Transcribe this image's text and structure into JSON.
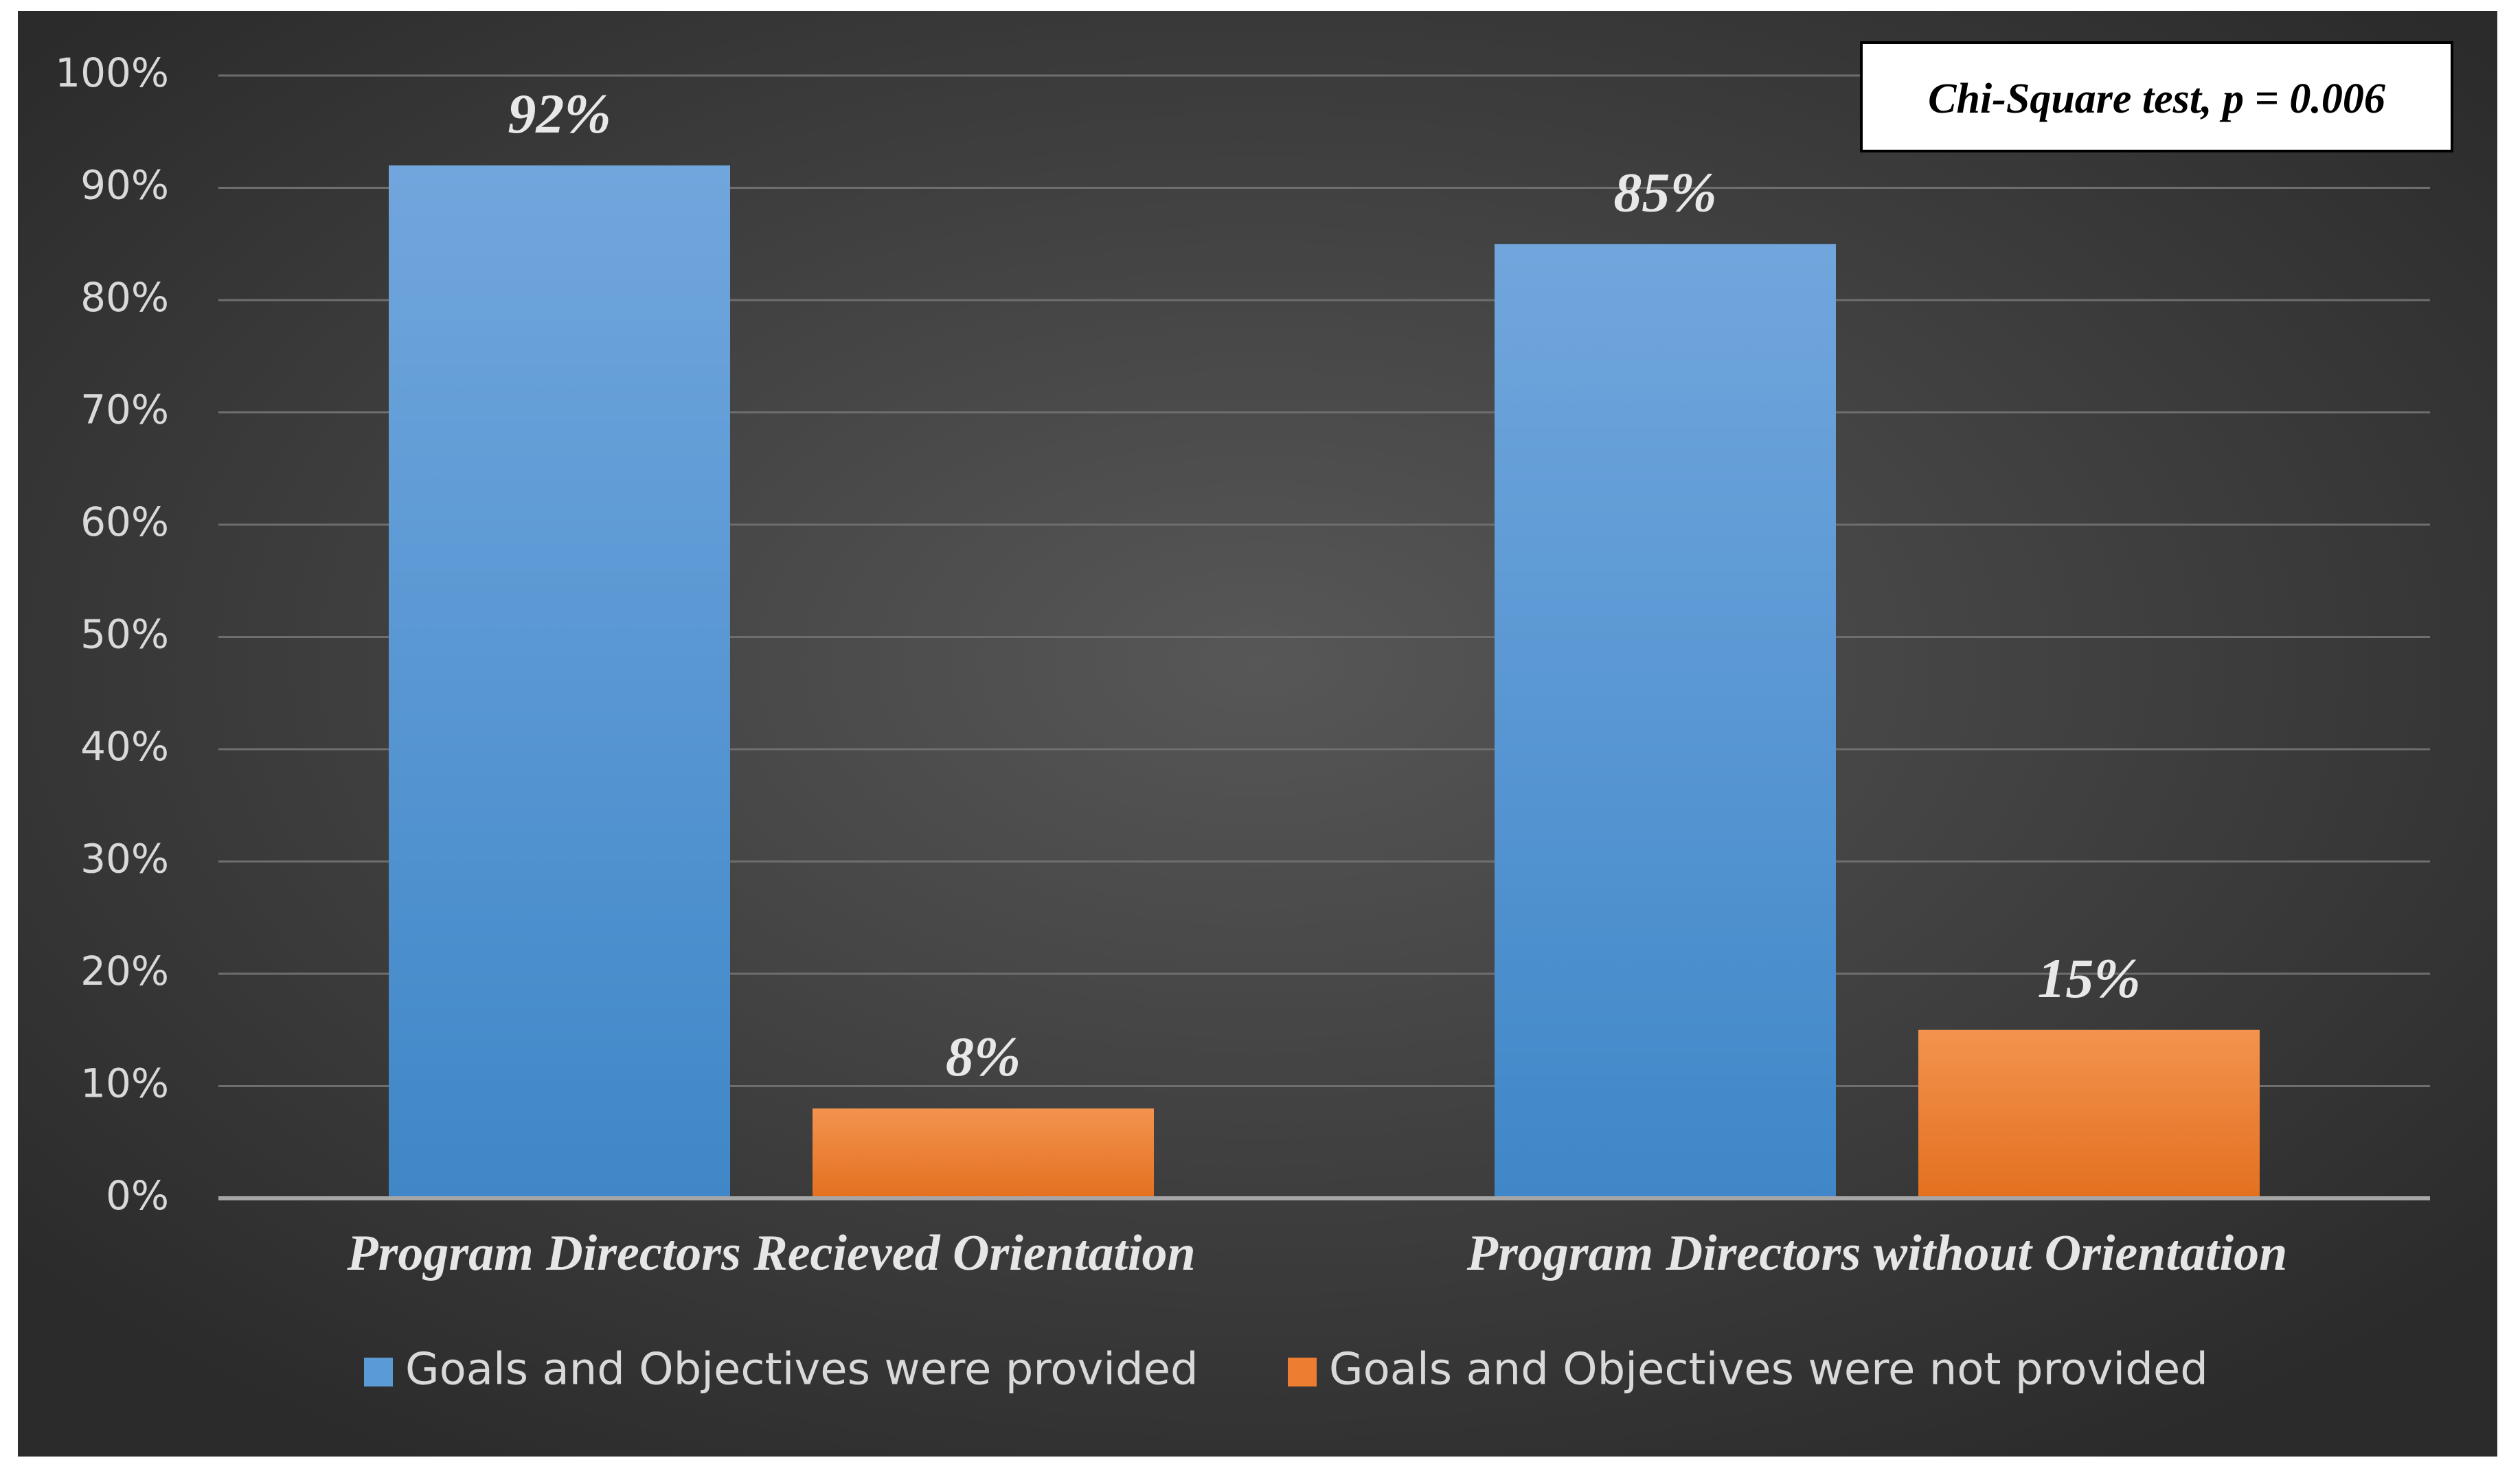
{
  "chart_data": {
    "type": "bar",
    "title": "",
    "xlabel": "",
    "ylabel": "",
    "ylim": [
      0,
      100
    ],
    "y_ticks": [
      "0%",
      "10%",
      "20%",
      "30%",
      "40%",
      "50%",
      "60%",
      "70%",
      "80%",
      "90%",
      "100%"
    ],
    "categories": [
      "Program Directors Recieved Orientation",
      "Program Directors without Orientation"
    ],
    "series": [
      {
        "name": "Goals and Objectives were provided",
        "values": [
          92,
          85
        ],
        "labels": [
          "92%",
          "85%"
        ],
        "color": "#5b9bd5"
      },
      {
        "name": "Goals and Objectives were not provided",
        "values": [
          8,
          15
        ],
        "labels": [
          "8%",
          "15%"
        ],
        "color": "#ed7d31"
      }
    ],
    "annotation": "Chi-Square test, p = 0.006",
    "grid": true,
    "legend_position": "bottom",
    "background_color": "#404040"
  }
}
